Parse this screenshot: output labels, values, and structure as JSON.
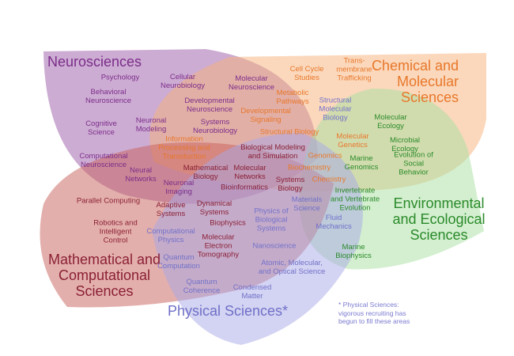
{
  "colors": {
    "neuro": "#7b2d8a",
    "chem": "#e8772a",
    "env": "#2a8a2a",
    "math": "#8a2035",
    "phys": "#7070c8"
  },
  "domains": [
    {
      "key": "neuro",
      "lines": [
        "Neurosciences"
      ],
      "fill": "#9b5aa8"
    },
    {
      "key": "chem",
      "lines": [
        "Chemical and",
        "Molecular",
        "Sciences"
      ],
      "fill": "#f8b27a"
    },
    {
      "key": "env",
      "lines": [
        "Environmental",
        "and Ecological",
        "Sciences"
      ],
      "fill": "#a8e0a0"
    },
    {
      "key": "math",
      "lines": [
        "Mathematical and",
        "Computational",
        "Sciences"
      ],
      "fill": "#c8605a"
    },
    {
      "key": "phys",
      "lines": [
        "Physical Sciences*"
      ],
      "fill": "#a8a8e8"
    }
  ],
  "topics": [
    {
      "lines": [
        "Psychology"
      ],
      "color": "neuro"
    },
    {
      "lines": [
        "Behavioral",
        "Neuroscience"
      ],
      "color": "neuro"
    },
    {
      "lines": [
        "Cognitive",
        "Science"
      ],
      "color": "neuro"
    },
    {
      "lines": [
        "Cellular",
        "Neurobiology"
      ],
      "color": "neuro"
    },
    {
      "lines": [
        "Molecular",
        "Neuroscience"
      ],
      "color": "neuro"
    },
    {
      "lines": [
        "Developmental",
        "Neuroscience"
      ],
      "color": "neuro"
    },
    {
      "lines": [
        "Systems",
        "Neurobiology"
      ],
      "color": "neuro"
    },
    {
      "lines": [
        "Neuronal",
        "Modeling"
      ],
      "color": "neuro"
    },
    {
      "lines": [
        "Computational",
        "Neuroscience"
      ],
      "color": "neuro"
    },
    {
      "lines": [
        "Neural",
        "Networks"
      ],
      "color": "neuro"
    },
    {
      "lines": [
        "Neuronal",
        "Imaging"
      ],
      "color": "neuro"
    },
    {
      "lines": [
        "Information",
        "Processing and",
        "Transduction"
      ],
      "color": "chem"
    },
    {
      "lines": [
        "Metabolic",
        "Pathways"
      ],
      "color": "chem"
    },
    {
      "lines": [
        "Developmental",
        "Signaling"
      ],
      "color": "chem"
    },
    {
      "lines": [
        "Structural Biology"
      ],
      "color": "chem"
    },
    {
      "lines": [
        "Cell Cycle",
        "Studies"
      ],
      "color": "chem"
    },
    {
      "lines": [
        "Trans-",
        "membrane",
        "Trafficking"
      ],
      "color": "chem"
    },
    {
      "lines": [
        "Genomics"
      ],
      "color": "chem"
    },
    {
      "lines": [
        "Biochemistry"
      ],
      "color": "chem"
    },
    {
      "lines": [
        "Chemistry"
      ],
      "color": "chem"
    },
    {
      "lines": [
        "Molecular",
        "Genetics"
      ],
      "color": "chem"
    },
    {
      "lines": [
        "Structural",
        "Molecular",
        "Biology"
      ],
      "color": "phys"
    },
    {
      "lines": [
        "Biological Modeling",
        "and Simulation"
      ],
      "color": "math"
    },
    {
      "lines": [
        "Mathematical",
        "Biology"
      ],
      "color": "math"
    },
    {
      "lines": [
        "Molecular",
        "Networks"
      ],
      "color": "math"
    },
    {
      "lines": [
        "Bioinformatics"
      ],
      "color": "math"
    },
    {
      "lines": [
        "Systems",
        "Biology"
      ],
      "color": "math"
    },
    {
      "lines": [
        "Parallel Computing"
      ],
      "color": "math"
    },
    {
      "lines": [
        "Adaptive",
        "Systems"
      ],
      "color": "math"
    },
    {
      "lines": [
        "Dynamical",
        "Systems"
      ],
      "color": "math"
    },
    {
      "lines": [
        "Biophysics"
      ],
      "color": "math"
    },
    {
      "lines": [
        "Robotics and",
        "Intelligent",
        "Control"
      ],
      "color": "math"
    },
    {
      "lines": [
        "Molecular",
        "Electron",
        "Tomography"
      ],
      "color": "math"
    },
    {
      "lines": [
        "Computational",
        "Physics"
      ],
      "color": "phys"
    },
    {
      "lines": [
        "Quantum",
        "Computation"
      ],
      "color": "phys"
    },
    {
      "lines": [
        "Quantum",
        "Coherence"
      ],
      "color": "phys"
    },
    {
      "lines": [
        "Condensed",
        "Matter"
      ],
      "color": "phys"
    },
    {
      "lines": [
        "Physics of",
        "Biological",
        "Systems"
      ],
      "color": "phys"
    },
    {
      "lines": [
        "Nanoscience"
      ],
      "color": "phys"
    },
    {
      "lines": [
        "Atomic, Molecular,",
        "and Optical Science"
      ],
      "color": "phys"
    },
    {
      "lines": [
        "Materials",
        "Science"
      ],
      "color": "phys"
    },
    {
      "lines": [
        "Fluid",
        "Mechanics"
      ],
      "color": "phys"
    },
    {
      "lines": [
        "Molecular",
        "Ecology"
      ],
      "color": "env"
    },
    {
      "lines": [
        "Microbial",
        "Ecology"
      ],
      "color": "env"
    },
    {
      "lines": [
        "Evolution of",
        "Social",
        "Behavior"
      ],
      "color": "env"
    },
    {
      "lines": [
        "Marine",
        "Genomics"
      ],
      "color": "env"
    },
    {
      "lines": [
        "Invertebrate",
        "and Vertebrate",
        "Evolution"
      ],
      "color": "env"
    },
    {
      "lines": [
        "Marine",
        "Biophysics"
      ],
      "color": "env"
    }
  ],
  "footnote": [
    "* Physical Sciences:",
    "vigorous recruiting has",
    "begun to fill these areas"
  ]
}
